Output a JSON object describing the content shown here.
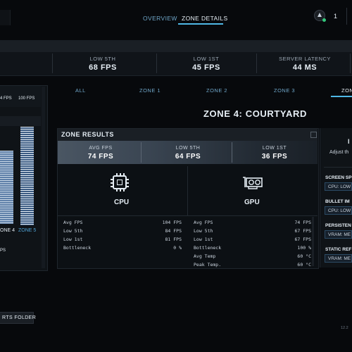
{
  "nav": {
    "tabs": [
      {
        "label": "OVERVIEW"
      },
      {
        "label": "ZONE DETAILS",
        "active": true
      }
    ],
    "count": "1",
    "accent": "#4fb8e6"
  },
  "stats": [
    {
      "label": "LOW 5TH",
      "value": "68 FPS"
    },
    {
      "label": "LOW 1ST",
      "value": "45 FPS"
    },
    {
      "label": "SERVER LATENCY",
      "value": "44 MS"
    }
  ],
  "left_panel": {
    "fps_a": "4 FPS",
    "fps_b": "100 FPS",
    "zone_a": "ONE 4",
    "zone_b": "ZONE 5",
    "fps_c": "PS"
  },
  "zone_tabs": [
    {
      "label": "ALL"
    },
    {
      "label": "ZONE 1"
    },
    {
      "label": "ZONE 2"
    },
    {
      "label": "ZONE 3"
    },
    {
      "label": "ZONE",
      "active": true
    }
  ],
  "zone_title": {
    "prefix": "ZONE 4:",
    "name": "COURTYARD"
  },
  "results": {
    "title": "ZONE RESULTS",
    "summary": [
      {
        "label": "AVG FPS",
        "value": "74 FPS"
      },
      {
        "label": "LOW 5TH",
        "value": "64 FPS"
      },
      {
        "label": "LOW 1ST",
        "value": "36 FPS"
      }
    ],
    "cpu": {
      "label": "CPU",
      "rows": [
        {
          "k": "Avg FPS",
          "v": "104 FPS"
        },
        {
          "k": "Low 5th",
          "v": "84 FPS"
        },
        {
          "k": "Low 1st",
          "v": "81 FPS"
        },
        {
          "k": "Bottleneck",
          "v": "0 %"
        }
      ]
    },
    "gpu": {
      "label": "GPU",
      "rows": [
        {
          "k": "Avg FPS",
          "v": "74 FPS"
        },
        {
          "k": "Low 5th",
          "v": "67 FPS"
        },
        {
          "k": "Low 1st",
          "v": "67 FPS"
        },
        {
          "k": "Bottleneck",
          "v": "100 %"
        },
        {
          "k": "Avg Temp",
          "v": "60 °C"
        },
        {
          "k": "Peak Temp.",
          "v": "60 °C"
        }
      ]
    }
  },
  "right_panel": {
    "title": "I",
    "subtitle": "Adjust th",
    "settings": [
      {
        "label": "SCREEN SP",
        "value": "CPU: LOW"
      },
      {
        "label": "BULLET IM",
        "value": "CPU: LOW"
      },
      {
        "label": "PERSISTEN",
        "value": "VRAM: ME"
      },
      {
        "label": "STATIC REF",
        "value": "VRAM: ME"
      }
    ]
  },
  "footer": {
    "folder_button": "RTS FOLDER",
    "version": "12.2"
  }
}
